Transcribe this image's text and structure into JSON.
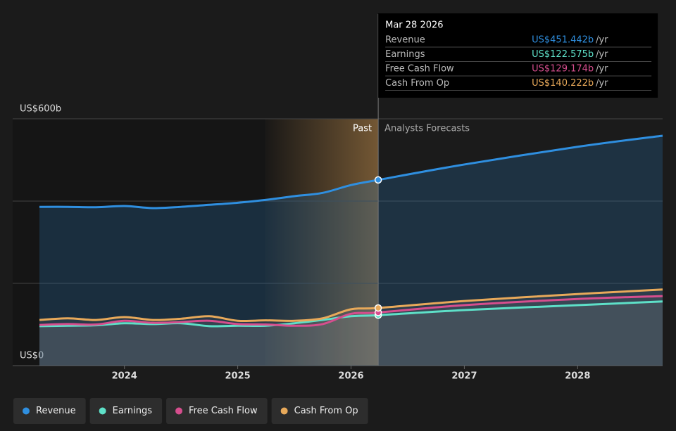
{
  "chart_data": {
    "type": "line",
    "x": [
      2023.25,
      2023.5,
      2023.75,
      2024,
      2024.25,
      2024.5,
      2024.75,
      2025,
      2025.25,
      2025.5,
      2025.75,
      2026,
      2026.24,
      2027,
      2028,
      2028.75
    ],
    "xlim": [
      2023.25,
      2028.75
    ],
    "xticks": [
      2024,
      2025,
      2026,
      2027,
      2028
    ],
    "ylim": [
      0,
      600
    ],
    "yticks": [
      {
        "value": 0,
        "label": "US$0"
      },
      {
        "value": 200,
        "label": null
      },
      {
        "value": 400,
        "label": null
      },
      {
        "value": 600,
        "label": "US$600b"
      }
    ],
    "grid": true,
    "past_shade": [
      2025.24,
      2026.24
    ],
    "past_label": "Past",
    "forecast_label": "Analysts Forecasts",
    "series": [
      {
        "name": "Revenue",
        "color": "#2f8fe0",
        "values": [
          386,
          386,
          385,
          388,
          383,
          386,
          391,
          396,
          403,
          412,
          420,
          439,
          451.442,
          489,
          532,
          559
        ]
      },
      {
        "name": "Earnings",
        "color": "#5ee0c8",
        "values": [
          96,
          97,
          98,
          103,
          101,
          103,
          96,
          97,
          97,
          103,
          111,
          120,
          122.575,
          135,
          147,
          156
        ]
      },
      {
        "name": "Free Cash Flow",
        "color": "#d64e8e",
        "values": [
          99,
          101,
          100,
          109,
          104,
          106,
          109,
          101,
          100,
          97,
          101,
          126,
          129.174,
          147,
          162,
          169
        ]
      },
      {
        "name": "Cash From Op",
        "color": "#e8a95a",
        "values": [
          111,
          115,
          111,
          118,
          111,
          114,
          120,
          109,
          110,
          109,
          115,
          137,
          140.222,
          157,
          174,
          185
        ]
      }
    ],
    "tooltip": {
      "title": "Mar 28 2026",
      "suffix": "/yr",
      "values": [
        451.442,
        122.575,
        129.174,
        140.222
      ],
      "value_labels": [
        "US$451.442b",
        "US$122.575b",
        "US$129.174b",
        "US$140.222b"
      ]
    },
    "legend": "bottom-left"
  }
}
